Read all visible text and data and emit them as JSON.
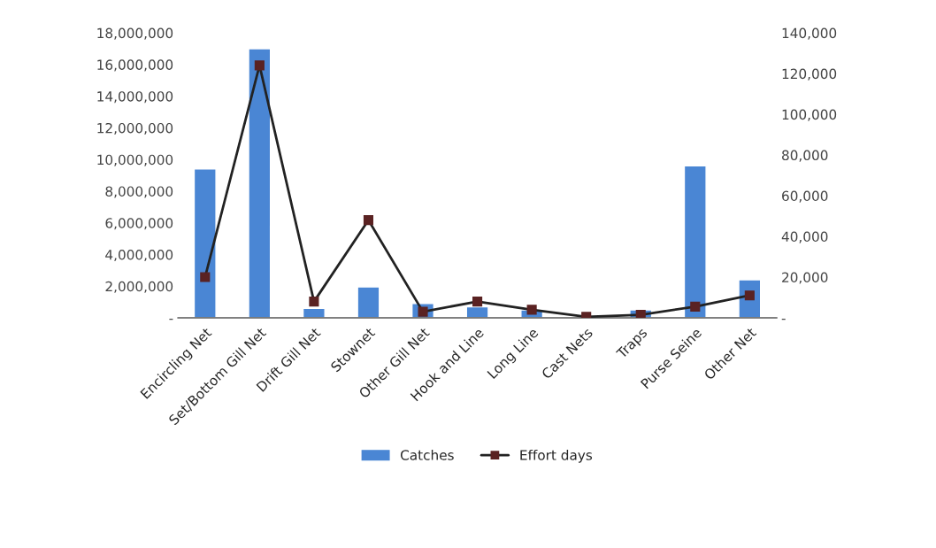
{
  "chart_data": {
    "type": "bar",
    "categories": [
      "Encircling Net",
      "Set/Bottom Gill Net",
      "Drift Gill Net",
      "Stownet",
      "Other Gill Net",
      "Hook and Line",
      "Long Line",
      "Cast Nets",
      "Traps",
      "Purse Seine",
      "Other Net"
    ],
    "series": [
      {
        "name": "Catches",
        "color": "#4a86d4",
        "values": [
          9400000,
          17000000,
          600000,
          1950000,
          900000,
          700000,
          500000,
          50000,
          500000,
          9600000,
          2400000
        ]
      },
      {
        "name": "Effort days",
        "color": "#5a2222",
        "type": "line",
        "axis": "y2",
        "marker": "square",
        "line_style": "solid",
        "values": [
          20000,
          124000,
          8000,
          48000,
          3000,
          8000,
          4000,
          500,
          1500,
          5500,
          11000
        ]
      }
    ],
    "ylim": [
      0,
      18000000
    ],
    "yticks": [
      {
        "value": 0,
        "label": "-"
      },
      {
        "value": 2000000,
        "label": "2,000,000"
      },
      {
        "value": 4000000,
        "label": "4,000,000"
      },
      {
        "value": 6000000,
        "label": "6,000,000"
      },
      {
        "value": 8000000,
        "label": "8,000,000"
      },
      {
        "value": 10000000,
        "label": "10,000,000"
      },
      {
        "value": 12000000,
        "label": "12,000,000"
      },
      {
        "value": 14000000,
        "label": "14,000,000"
      },
      {
        "value": 16000000,
        "label": "16,000,000"
      },
      {
        "value": 18000000,
        "label": "18,000,000"
      }
    ],
    "y2lim": [
      0,
      140000
    ],
    "y2ticks": [
      {
        "value": 0,
        "label": "-"
      },
      {
        "value": 20000,
        "label": "20,000"
      },
      {
        "value": 40000,
        "label": "40,000"
      },
      {
        "value": 60000,
        "label": "60,000"
      },
      {
        "value": 80000,
        "label": "80,000"
      },
      {
        "value": 100000,
        "label": "100,000"
      },
      {
        "value": 120000,
        "label": "120,000"
      },
      {
        "value": 140000,
        "label": "140,000"
      }
    ],
    "legend": "bottom"
  }
}
